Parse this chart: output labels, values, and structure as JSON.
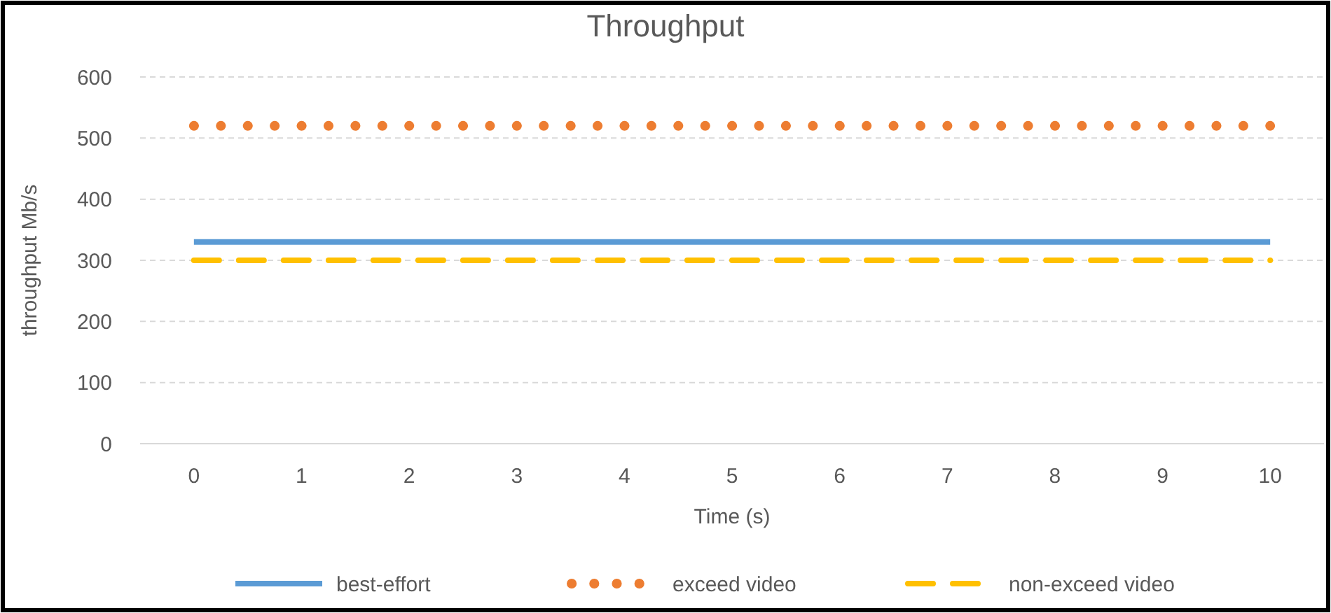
{
  "chart_data": {
    "type": "line",
    "title": "Throughput",
    "xlabel": "Time (s)",
    "ylabel": "throughput Mb/s",
    "categories": [
      "0",
      "1",
      "2",
      "3",
      "4",
      "5",
      "6",
      "7",
      "8",
      "9",
      "10"
    ],
    "series": [
      {
        "name": "best-effort",
        "color": "#5b9bd5",
        "line_style": "solid",
        "values": [
          330,
          330,
          330,
          330,
          330,
          330,
          330,
          330,
          330,
          330,
          330
        ]
      },
      {
        "name": "exceed video",
        "color": "#ed7d31",
        "line_style": "dotted",
        "values": [
          520,
          520,
          520,
          520,
          520,
          520,
          520,
          520,
          520,
          520,
          520
        ]
      },
      {
        "name": "non-exceed video",
        "color": "#ffc000",
        "line_style": "dashed",
        "values": [
          300,
          300,
          300,
          300,
          300,
          300,
          300,
          300,
          300,
          300,
          300
        ]
      }
    ],
    "ylim": [
      0,
      600
    ],
    "yticks": [
      0,
      100,
      200,
      300,
      400,
      500,
      600
    ],
    "grid": "y",
    "legend": "bottom",
    "marker": "none"
  }
}
